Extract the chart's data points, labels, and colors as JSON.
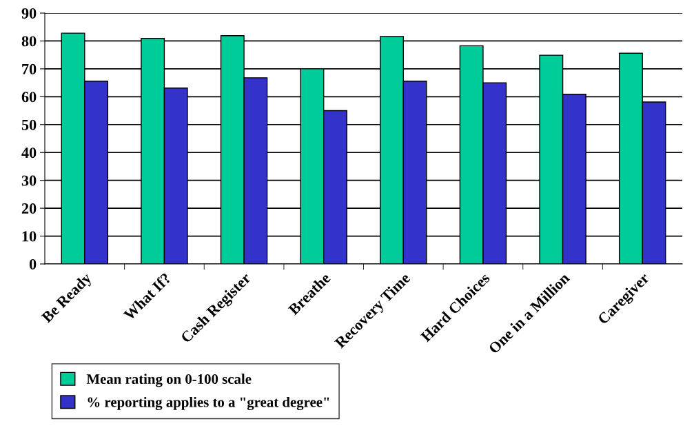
{
  "chart_data": {
    "type": "bar",
    "categories": [
      "Be Ready",
      "What If?",
      "Cash Register",
      "Breathe",
      "Recovery Time",
      "Hard Choices",
      "One in a Million",
      "Caregiver"
    ],
    "series": [
      {
        "name": "Mean rating on 0-100 scale",
        "color": "#00cc99",
        "values": [
          82.8,
          80.9,
          81.9,
          70.0,
          81.6,
          78.3,
          74.9,
          75.6
        ]
      },
      {
        "name": "% reporting applies to a \"great degree\"",
        "color": "#3333cc",
        "values": [
          65.6,
          63.1,
          66.8,
          55.0,
          65.6,
          65.0,
          60.9,
          58.1
        ]
      }
    ],
    "ylim": [
      0,
      90
    ],
    "yticks": [
      0,
      10,
      20,
      30,
      40,
      50,
      60,
      70,
      80,
      90
    ],
    "grid": "y",
    "legend": "bottom left"
  }
}
